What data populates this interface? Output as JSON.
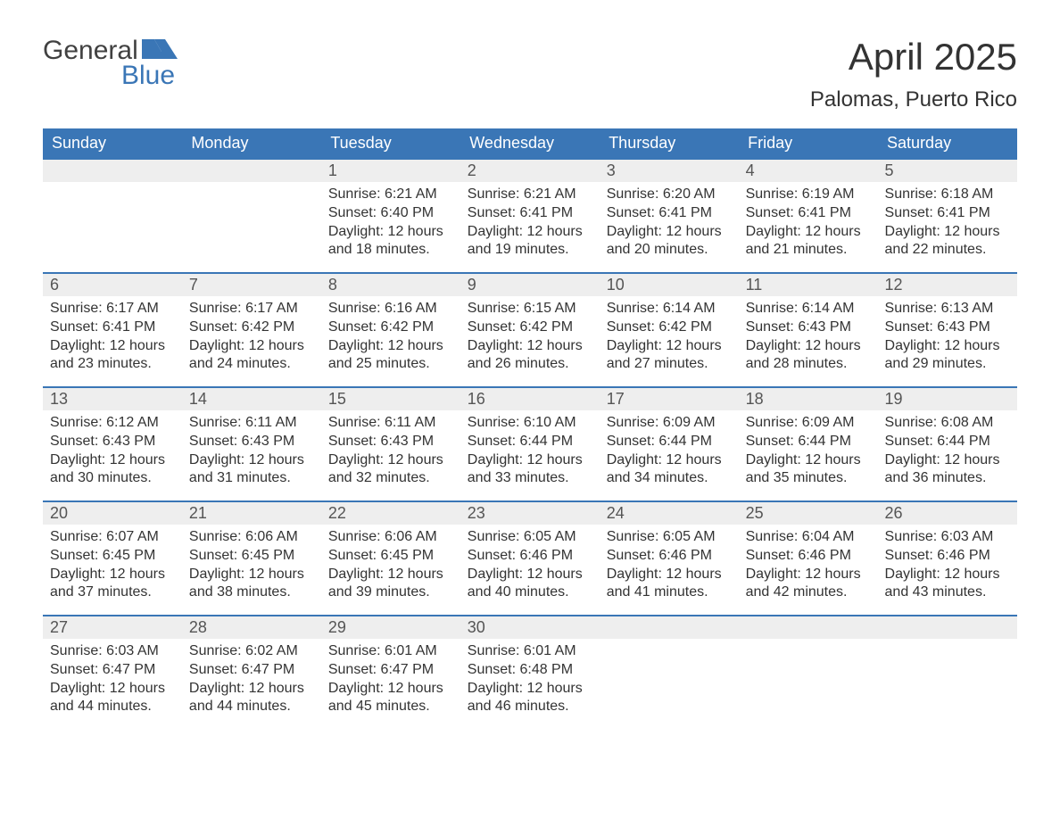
{
  "brand": {
    "word1": "General",
    "word2": "Blue",
    "flag_color": "#3a76b6",
    "word1_color": "#414141",
    "word2_color": "#3a76b6"
  },
  "title": {
    "month": "April 2025",
    "location": "Palomas, Puerto Rico"
  },
  "colors": {
    "header_bg": "#3a76b6",
    "header_text": "#ffffff",
    "daynum_bg": "#eeeeee",
    "daynum_border_top": "#3a76b6",
    "text": "#333333",
    "background": "#ffffff"
  },
  "typography": {
    "month_title_fontsize": 42,
    "location_fontsize": 24,
    "weekday_fontsize": 18,
    "daynum_fontsize": 18,
    "details_fontsize": 16
  },
  "weekdays": [
    "Sunday",
    "Monday",
    "Tuesday",
    "Wednesday",
    "Thursday",
    "Friday",
    "Saturday"
  ],
  "weeks": [
    [
      {
        "day": "",
        "sunrise": "",
        "sunset": "",
        "daylight1": "",
        "daylight2": ""
      },
      {
        "day": "",
        "sunrise": "",
        "sunset": "",
        "daylight1": "",
        "daylight2": ""
      },
      {
        "day": "1",
        "sunrise": "Sunrise: 6:21 AM",
        "sunset": "Sunset: 6:40 PM",
        "daylight1": "Daylight: 12 hours",
        "daylight2": "and 18 minutes."
      },
      {
        "day": "2",
        "sunrise": "Sunrise: 6:21 AM",
        "sunset": "Sunset: 6:41 PM",
        "daylight1": "Daylight: 12 hours",
        "daylight2": "and 19 minutes."
      },
      {
        "day": "3",
        "sunrise": "Sunrise: 6:20 AM",
        "sunset": "Sunset: 6:41 PM",
        "daylight1": "Daylight: 12 hours",
        "daylight2": "and 20 minutes."
      },
      {
        "day": "4",
        "sunrise": "Sunrise: 6:19 AM",
        "sunset": "Sunset: 6:41 PM",
        "daylight1": "Daylight: 12 hours",
        "daylight2": "and 21 minutes."
      },
      {
        "day": "5",
        "sunrise": "Sunrise: 6:18 AM",
        "sunset": "Sunset: 6:41 PM",
        "daylight1": "Daylight: 12 hours",
        "daylight2": "and 22 minutes."
      }
    ],
    [
      {
        "day": "6",
        "sunrise": "Sunrise: 6:17 AM",
        "sunset": "Sunset: 6:41 PM",
        "daylight1": "Daylight: 12 hours",
        "daylight2": "and 23 minutes."
      },
      {
        "day": "7",
        "sunrise": "Sunrise: 6:17 AM",
        "sunset": "Sunset: 6:42 PM",
        "daylight1": "Daylight: 12 hours",
        "daylight2": "and 24 minutes."
      },
      {
        "day": "8",
        "sunrise": "Sunrise: 6:16 AM",
        "sunset": "Sunset: 6:42 PM",
        "daylight1": "Daylight: 12 hours",
        "daylight2": "and 25 minutes."
      },
      {
        "day": "9",
        "sunrise": "Sunrise: 6:15 AM",
        "sunset": "Sunset: 6:42 PM",
        "daylight1": "Daylight: 12 hours",
        "daylight2": "and 26 minutes."
      },
      {
        "day": "10",
        "sunrise": "Sunrise: 6:14 AM",
        "sunset": "Sunset: 6:42 PM",
        "daylight1": "Daylight: 12 hours",
        "daylight2": "and 27 minutes."
      },
      {
        "day": "11",
        "sunrise": "Sunrise: 6:14 AM",
        "sunset": "Sunset: 6:43 PM",
        "daylight1": "Daylight: 12 hours",
        "daylight2": "and 28 minutes."
      },
      {
        "day": "12",
        "sunrise": "Sunrise: 6:13 AM",
        "sunset": "Sunset: 6:43 PM",
        "daylight1": "Daylight: 12 hours",
        "daylight2": "and 29 minutes."
      }
    ],
    [
      {
        "day": "13",
        "sunrise": "Sunrise: 6:12 AM",
        "sunset": "Sunset: 6:43 PM",
        "daylight1": "Daylight: 12 hours",
        "daylight2": "and 30 minutes."
      },
      {
        "day": "14",
        "sunrise": "Sunrise: 6:11 AM",
        "sunset": "Sunset: 6:43 PM",
        "daylight1": "Daylight: 12 hours",
        "daylight2": "and 31 minutes."
      },
      {
        "day": "15",
        "sunrise": "Sunrise: 6:11 AM",
        "sunset": "Sunset: 6:43 PM",
        "daylight1": "Daylight: 12 hours",
        "daylight2": "and 32 minutes."
      },
      {
        "day": "16",
        "sunrise": "Sunrise: 6:10 AM",
        "sunset": "Sunset: 6:44 PM",
        "daylight1": "Daylight: 12 hours",
        "daylight2": "and 33 minutes."
      },
      {
        "day": "17",
        "sunrise": "Sunrise: 6:09 AM",
        "sunset": "Sunset: 6:44 PM",
        "daylight1": "Daylight: 12 hours",
        "daylight2": "and 34 minutes."
      },
      {
        "day": "18",
        "sunrise": "Sunrise: 6:09 AM",
        "sunset": "Sunset: 6:44 PM",
        "daylight1": "Daylight: 12 hours",
        "daylight2": "and 35 minutes."
      },
      {
        "day": "19",
        "sunrise": "Sunrise: 6:08 AM",
        "sunset": "Sunset: 6:44 PM",
        "daylight1": "Daylight: 12 hours",
        "daylight2": "and 36 minutes."
      }
    ],
    [
      {
        "day": "20",
        "sunrise": "Sunrise: 6:07 AM",
        "sunset": "Sunset: 6:45 PM",
        "daylight1": "Daylight: 12 hours",
        "daylight2": "and 37 minutes."
      },
      {
        "day": "21",
        "sunrise": "Sunrise: 6:06 AM",
        "sunset": "Sunset: 6:45 PM",
        "daylight1": "Daylight: 12 hours",
        "daylight2": "and 38 minutes."
      },
      {
        "day": "22",
        "sunrise": "Sunrise: 6:06 AM",
        "sunset": "Sunset: 6:45 PM",
        "daylight1": "Daylight: 12 hours",
        "daylight2": "and 39 minutes."
      },
      {
        "day": "23",
        "sunrise": "Sunrise: 6:05 AM",
        "sunset": "Sunset: 6:46 PM",
        "daylight1": "Daylight: 12 hours",
        "daylight2": "and 40 minutes."
      },
      {
        "day": "24",
        "sunrise": "Sunrise: 6:05 AM",
        "sunset": "Sunset: 6:46 PM",
        "daylight1": "Daylight: 12 hours",
        "daylight2": "and 41 minutes."
      },
      {
        "day": "25",
        "sunrise": "Sunrise: 6:04 AM",
        "sunset": "Sunset: 6:46 PM",
        "daylight1": "Daylight: 12 hours",
        "daylight2": "and 42 minutes."
      },
      {
        "day": "26",
        "sunrise": "Sunrise: 6:03 AM",
        "sunset": "Sunset: 6:46 PM",
        "daylight1": "Daylight: 12 hours",
        "daylight2": "and 43 minutes."
      }
    ],
    [
      {
        "day": "27",
        "sunrise": "Sunrise: 6:03 AM",
        "sunset": "Sunset: 6:47 PM",
        "daylight1": "Daylight: 12 hours",
        "daylight2": "and 44 minutes."
      },
      {
        "day": "28",
        "sunrise": "Sunrise: 6:02 AM",
        "sunset": "Sunset: 6:47 PM",
        "daylight1": "Daylight: 12 hours",
        "daylight2": "and 44 minutes."
      },
      {
        "day": "29",
        "sunrise": "Sunrise: 6:01 AM",
        "sunset": "Sunset: 6:47 PM",
        "daylight1": "Daylight: 12 hours",
        "daylight2": "and 45 minutes."
      },
      {
        "day": "30",
        "sunrise": "Sunrise: 6:01 AM",
        "sunset": "Sunset: 6:48 PM",
        "daylight1": "Daylight: 12 hours",
        "daylight2": "and 46 minutes."
      },
      {
        "day": "",
        "sunrise": "",
        "sunset": "",
        "daylight1": "",
        "daylight2": ""
      },
      {
        "day": "",
        "sunrise": "",
        "sunset": "",
        "daylight1": "",
        "daylight2": ""
      },
      {
        "day": "",
        "sunrise": "",
        "sunset": "",
        "daylight1": "",
        "daylight2": ""
      }
    ]
  ]
}
